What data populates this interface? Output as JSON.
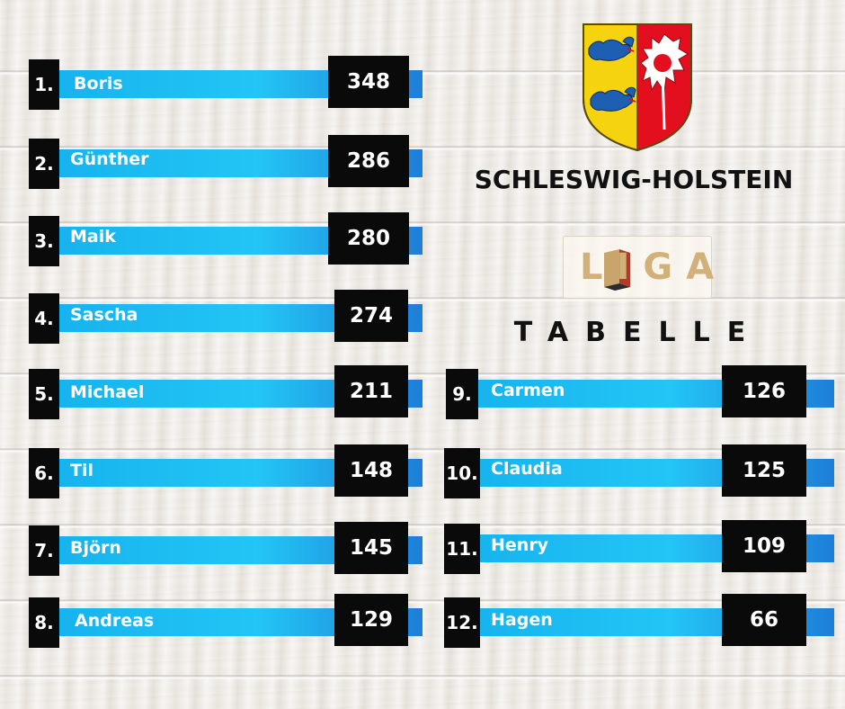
{
  "header": {
    "state_name": "SCHLESWIG-HOLSTEIN",
    "liga_text": "LIGA",
    "table_title": "TABELLE",
    "crest_icon": "schleswig-holstein-crest-icon",
    "colors": {
      "bar": "#23c5f5",
      "bar_end": "#1e7ed8",
      "box": "#0a0a0a",
      "crest_red": "#e30f1e",
      "crest_gold": "#f5d40f",
      "crest_blue": "#1d5fb3"
    }
  },
  "ranking": [
    {
      "rank": "1.",
      "name": "Boris",
      "score": "348"
    },
    {
      "rank": "2.",
      "name": "Günther",
      "score": "286"
    },
    {
      "rank": "3.",
      "name": "Maik",
      "score": "280"
    },
    {
      "rank": "4.",
      "name": "Sascha",
      "score": "274"
    },
    {
      "rank": "5.",
      "name": "Michael",
      "score": "211"
    },
    {
      "rank": "6.",
      "name": "Til",
      "score": "148"
    },
    {
      "rank": "7.",
      "name": "Björn",
      "score": "145"
    },
    {
      "rank": "8.",
      "name": "Andreas",
      "score": "129"
    },
    {
      "rank": "9.",
      "name": "Carmen",
      "score": "126"
    },
    {
      "rank": "10.",
      "name": "Claudia",
      "score": "125"
    },
    {
      "rank": "11.",
      "name": "Henry",
      "score": "109"
    },
    {
      "rank": "12.",
      "name": "Hagen",
      "score": "66"
    }
  ]
}
